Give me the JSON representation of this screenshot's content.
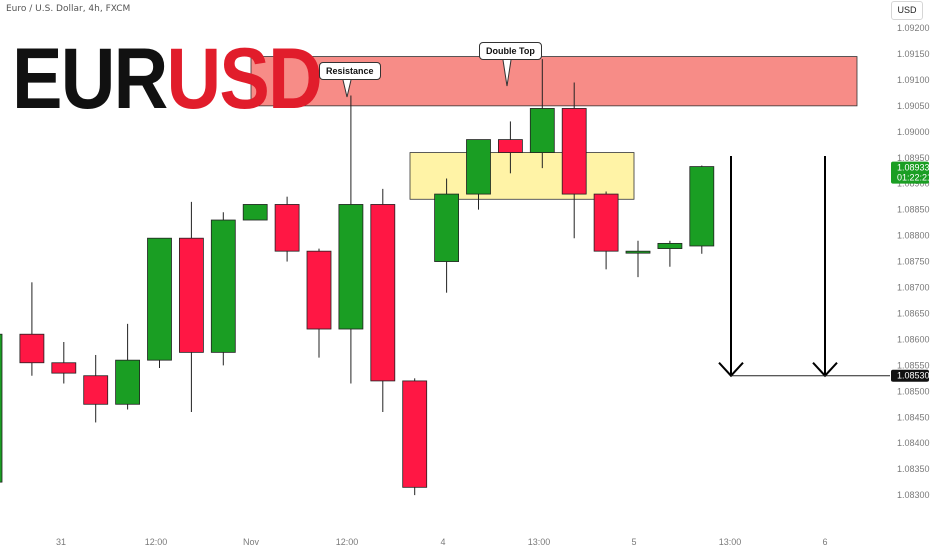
{
  "header": {
    "symbol": "Euro / U.S. Dollar, 4h, FXCM",
    "currency": "USD"
  },
  "brand": {
    "part1": "EUR",
    "part2": "USD"
  },
  "colors": {
    "up": "#1a9e23",
    "down": "#ff1744",
    "resistance": "#f78c87",
    "support": "#fff3a6",
    "brand_red": "#e11d2b"
  },
  "chart_data": {
    "type": "candlestick",
    "y_range": [
      1.0828,
      1.0924
    ],
    "y_ticks": [
      "1.09200",
      "1.09150",
      "1.09100",
      "1.09050",
      "1.09000",
      "1.08950",
      "1.08900",
      "1.08850",
      "1.08800",
      "1.08750",
      "1.08700",
      "1.08650",
      "1.08600",
      "1.08550",
      "1.08500",
      "1.08450",
      "1.08400",
      "1.08350",
      "1.08300"
    ],
    "x_labels": [
      "31",
      "12:00",
      "Nov",
      "12:00",
      "4",
      "13:00",
      "5",
      "13:00",
      "6"
    ],
    "candles": [
      {
        "o": 1.08325,
        "h": 1.0861,
        "l": 1.08325,
        "c": 1.0861
      },
      {
        "o": 1.0861,
        "h": 1.0871,
        "l": 1.0853,
        "c": 1.08555
      },
      {
        "o": 1.08555,
        "h": 1.08595,
        "l": 1.08515,
        "c": 1.08535
      },
      {
        "o": 1.0853,
        "h": 1.0857,
        "l": 1.0844,
        "c": 1.08475
      },
      {
        "o": 1.08475,
        "h": 1.0863,
        "l": 1.08465,
        "c": 1.0856
      },
      {
        "o": 1.0856,
        "h": 1.08795,
        "l": 1.08545,
        "c": 1.08795
      },
      {
        "o": 1.08795,
        "h": 1.08865,
        "l": 1.0846,
        "c": 1.08575
      },
      {
        "o": 1.08575,
        "h": 1.08845,
        "l": 1.0855,
        "c": 1.0883
      },
      {
        "o": 1.0883,
        "h": 1.0886,
        "l": 1.0883,
        "c": 1.0886
      },
      {
        "o": 1.0886,
        "h": 1.08875,
        "l": 1.0875,
        "c": 1.0877
      },
      {
        "o": 1.0877,
        "h": 1.08775,
        "l": 1.08565,
        "c": 1.0862
      },
      {
        "o": 1.0862,
        "h": 1.0907,
        "l": 1.08515,
        "c": 1.0886
      },
      {
        "o": 1.0886,
        "h": 1.0889,
        "l": 1.0846,
        "c": 1.0852
      },
      {
        "o": 1.0852,
        "h": 1.08525,
        "l": 1.083,
        "c": 1.08315
      },
      {
        "o": 1.0875,
        "h": 1.0891,
        "l": 1.0869,
        "c": 1.0888
      },
      {
        "o": 1.0888,
        "h": 1.08985,
        "l": 1.0885,
        "c": 1.08985
      },
      {
        "o": 1.08985,
        "h": 1.0902,
        "l": 1.0892,
        "c": 1.0896
      },
      {
        "o": 1.0896,
        "h": 1.0914,
        "l": 1.0893,
        "c": 1.09045
      },
      {
        "o": 1.09045,
        "h": 1.09095,
        "l": 1.08795,
        "c": 1.0888
      },
      {
        "o": 1.0888,
        "h": 1.08885,
        "l": 1.08735,
        "c": 1.0877
      },
      {
        "o": 1.0877,
        "h": 1.0879,
        "l": 1.0872,
        "c": 1.0877
      },
      {
        "o": 1.08775,
        "h": 1.0879,
        "l": 1.0874,
        "c": 1.08785
      },
      {
        "o": 1.0878,
        "h": 1.08935,
        "l": 1.08765,
        "c": 1.08933
      }
    ],
    "zones": [
      {
        "name": "resistance",
        "from": 1.0905,
        "to": 1.09145
      },
      {
        "name": "support",
        "from": 1.0887,
        "to": 1.0896
      }
    ],
    "annotations": [
      "Resistance",
      "Double Top"
    ],
    "target_price": "1.08530",
    "current_price": "1.08933",
    "countdown": "01:22:21"
  }
}
